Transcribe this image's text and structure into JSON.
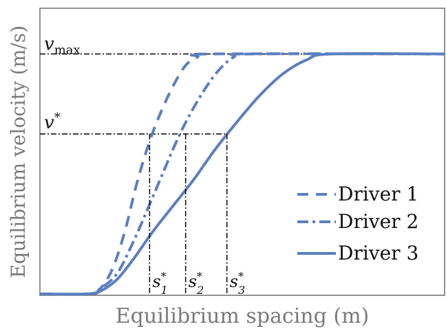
{
  "chart_data": {
    "type": "line",
    "xlabel": "Equilibrium spacing (m)",
    "ylabel": "Equilibrium velocity (m/s)",
    "xlim": [
      0,
      1
    ],
    "ylim": [
      0,
      1
    ],
    "grid": false,
    "legend_placement": "bottom-right",
    "colors": {
      "series": "#5b7fbf",
      "reference": "#111111",
      "frame": "#6b6b6b"
    },
    "reference_levels": {
      "v_max": {
        "label": "v_max",
        "value": 0.84
      },
      "v_star": {
        "label": "v*",
        "value": 0.56
      }
    },
    "series": [
      {
        "name": "Driver 1",
        "dash": "dashed",
        "points": [
          [
            0.0,
            0.0
          ],
          [
            0.12,
            0.0
          ],
          [
            0.15,
            0.02
          ],
          [
            0.18,
            0.09
          ],
          [
            0.21,
            0.22
          ],
          [
            0.24,
            0.39
          ],
          [
            0.27,
            0.53
          ],
          [
            0.3,
            0.64
          ],
          [
            0.33,
            0.73
          ],
          [
            0.36,
            0.8
          ],
          [
            0.39,
            0.83
          ],
          [
            0.42,
            0.84
          ],
          [
            1.0,
            0.84
          ]
        ]
      },
      {
        "name": "Driver 2",
        "dash": "dash-dot",
        "points": [
          [
            0.0,
            0.0
          ],
          [
            0.12,
            0.0
          ],
          [
            0.15,
            0.02
          ],
          [
            0.19,
            0.07
          ],
          [
            0.23,
            0.18
          ],
          [
            0.27,
            0.31
          ],
          [
            0.3,
            0.41
          ],
          [
            0.33,
            0.51
          ],
          [
            0.36,
            0.6
          ],
          [
            0.4,
            0.7
          ],
          [
            0.44,
            0.78
          ],
          [
            0.48,
            0.83
          ],
          [
            0.52,
            0.84
          ],
          [
            1.0,
            0.84
          ]
        ]
      },
      {
        "name": "Driver 3",
        "dash": "solid",
        "points": [
          [
            0.0,
            0.0
          ],
          [
            0.12,
            0.0
          ],
          [
            0.15,
            0.01
          ],
          [
            0.19,
            0.05
          ],
          [
            0.23,
            0.12
          ],
          [
            0.28,
            0.22
          ],
          [
            0.33,
            0.31
          ],
          [
            0.38,
            0.4
          ],
          [
            0.43,
            0.5
          ],
          [
            0.48,
            0.59
          ],
          [
            0.54,
            0.69
          ],
          [
            0.6,
            0.77
          ],
          [
            0.66,
            0.82
          ],
          [
            0.72,
            0.84
          ],
          [
            1.0,
            0.84
          ]
        ]
      }
    ],
    "markers": [
      {
        "label_base": "s",
        "subscript": "1",
        "x": 0.271
      },
      {
        "label_base": "s",
        "subscript": "2",
        "x": 0.36
      },
      {
        "label_base": "s",
        "subscript": "3",
        "x": 0.462
      }
    ]
  }
}
